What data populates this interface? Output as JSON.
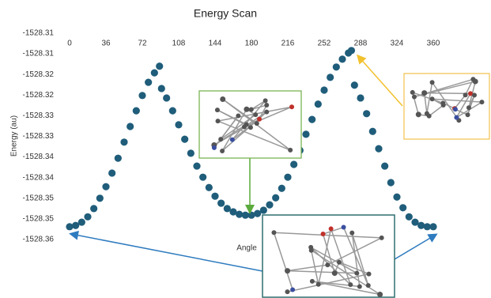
{
  "chart_data": {
    "type": "scatter",
    "title": "Energy Scan",
    "x_label": "Angle",
    "y_label": "Energy (au)",
    "color": "#1f5d7a",
    "grid": false,
    "xlim": [
      0,
      360
    ],
    "xticks": [
      0,
      36,
      72,
      108,
      144,
      180,
      216,
      252,
      288,
      324,
      360
    ],
    "ylim": [
      -1528.36,
      -1528.31
    ],
    "yticks": [
      {
        "value": -1528.31,
        "label": "-1528.31"
      },
      {
        "value": -1528.315,
        "label": "-1528.31"
      },
      {
        "value": -1528.32,
        "label": "-1528.32"
      },
      {
        "value": -1528.325,
        "label": "-1528.32"
      },
      {
        "value": -1528.33,
        "label": "-1528.33"
      },
      {
        "value": -1528.335,
        "label": "-1528.33"
      },
      {
        "value": -1528.34,
        "label": "-1528.34"
      },
      {
        "value": -1528.345,
        "label": "-1528.34"
      },
      {
        "value": -1528.35,
        "label": "-1528.35"
      },
      {
        "value": -1528.355,
        "label": "-1528.35"
      },
      {
        "value": -1528.36,
        "label": "-1528.36"
      }
    ],
    "x": [
      0,
      6,
      12,
      18,
      24,
      30,
      36,
      42,
      48,
      54,
      60,
      66,
      72,
      78,
      84,
      89,
      91,
      96,
      102,
      108,
      114,
      120,
      126,
      132,
      138,
      144,
      150,
      156,
      162,
      168,
      174,
      180,
      186,
      192,
      198,
      204,
      210,
      216,
      222,
      228,
      234,
      240,
      246,
      252,
      258,
      264,
      270,
      276,
      279,
      282,
      288,
      294,
      300,
      306,
      312,
      318,
      324,
      330,
      336,
      342,
      348,
      354,
      360
    ],
    "y": [
      -1528.3569,
      -1528.3566,
      -1528.3558,
      -1528.3545,
      -1528.3525,
      -1528.35,
      -1528.3472,
      -1528.3439,
      -1528.3403,
      -1528.3364,
      -1528.3326,
      -1528.3288,
      -1528.3251,
      -1528.3219,
      -1528.3196,
      -1528.318,
      -1528.3234,
      -1528.3257,
      -1528.3288,
      -1528.3322,
      -1528.3357,
      -1528.3391,
      -1528.3422,
      -1528.3449,
      -1528.3474,
      -1528.3495,
      -1528.3512,
      -1528.3525,
      -1528.3533,
      -1528.3539,
      -1528.3541,
      -1528.3541,
      -1528.3537,
      -1528.3529,
      -1528.3516,
      -1528.3499,
      -1528.3476,
      -1528.3449,
      -1528.3418,
      -1528.3384,
      -1528.3345,
      -1528.3309,
      -1528.3272,
      -1528.3238,
      -1528.3207,
      -1528.3182,
      -1528.3163,
      -1528.3148,
      -1528.3142,
      -1528.3226,
      -1528.3257,
      -1528.3295,
      -1528.3338,
      -1528.338,
      -1528.3422,
      -1528.3462,
      -1528.3497,
      -1528.3523,
      -1528.3545,
      -1528.3558,
      -1528.3566,
      -1528.3569,
      -1528.3569
    ]
  }
}
